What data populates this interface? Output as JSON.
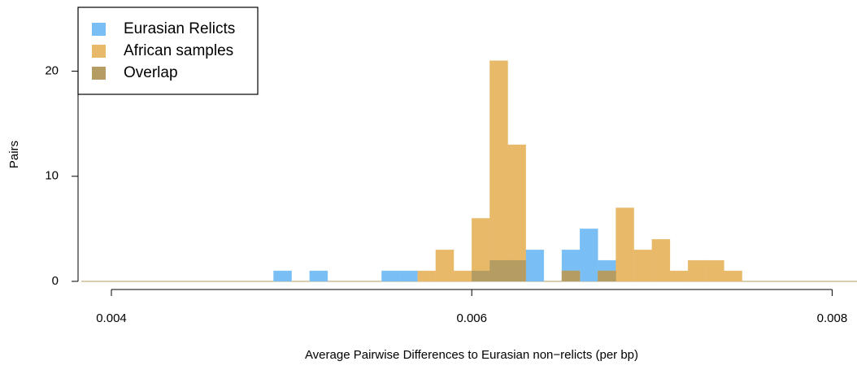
{
  "chart_data": {
    "type": "histogram",
    "xlabel": "Average Pairwise Differences to Eurasian non−relicts (per bp)",
    "ylabel": "Pairs",
    "bins": [
      0.0049,
      0.005,
      0.0051,
      0.0052,
      0.0053,
      0.0054,
      0.0055,
      0.0056,
      0.0057,
      0.0058,
      0.0059,
      0.006,
      0.0061,
      0.0062,
      0.0063,
      0.0064,
      0.0065,
      0.0066,
      0.0067,
      0.0068,
      0.0069,
      0.007,
      0.0071,
      0.0072,
      0.0073,
      0.0074,
      0.0075
    ],
    "series": [
      {
        "name": "Eurasian Relicts",
        "color": "#79bff5",
        "values": [
          1,
          0,
          1,
          0,
          0,
          0,
          1,
          1,
          0,
          0,
          0,
          1,
          2,
          2,
          3,
          0,
          3,
          5,
          2,
          0,
          0,
          0,
          0,
          0,
          0,
          0
        ]
      },
      {
        "name": "African samples",
        "color": "#e9b96a",
        "values": [
          0,
          0,
          0,
          0,
          0,
          0,
          0,
          0,
          1,
          3,
          1,
          6,
          21,
          13,
          0,
          0,
          1,
          0,
          1,
          7,
          3,
          4,
          1,
          2,
          2,
          1
        ]
      },
      {
        "name": "Overlap",
        "color": "#b59c62",
        "values": [
          0,
          0,
          0,
          0,
          0,
          0,
          0,
          0,
          0,
          0,
          0,
          1,
          2,
          2,
          0,
          0,
          1,
          0,
          1,
          0,
          0,
          0,
          0,
          0,
          0,
          0
        ]
      }
    ],
    "xlim": [
      0.003833,
      0.008138
    ],
    "xticks": [
      0.004,
      0.006,
      0.008
    ],
    "ylim": [
      0,
      26
    ],
    "yticks": [
      0,
      10,
      20
    ],
    "legend": "top-left"
  }
}
